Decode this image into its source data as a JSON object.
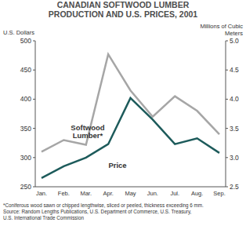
{
  "chart_data": {
    "type": "line",
    "title": "CANADIAN SOFTWOOD LUMBER PRODUCTION AND U.S. PRICES, 2001",
    "y_label": "U.S. Dollars",
    "y2_label": "Millions of Cubic Meters",
    "categories": [
      "Jan.",
      "Feb.",
      "Mar.",
      "Apr.",
      "May",
      "Jun.",
      "Jul.",
      "Aug.",
      "Sep."
    ],
    "series": [
      {
        "name": "Softwood Lumber*",
        "color": "#a6a6a6",
        "axis": "y2",
        "values": [
          3.1,
          3.3,
          3.22,
          4.77,
          4.15,
          3.7,
          4.05,
          3.8,
          3.4
        ]
      },
      {
        "name": "Price",
        "color": "#1d5b5b",
        "values": [
          265,
          285,
          300,
          323,
          402,
          365,
          323,
          333,
          308
        ]
      }
    ],
    "ylim": [
      250,
      500
    ],
    "yticks": [
      250,
      300,
      350,
      400,
      450,
      500
    ],
    "y2lim": [
      2.5,
      5.0
    ],
    "y2ticks": [
      {
        "value": 2.5,
        "label": "2.5"
      },
      {
        "value": 3.0,
        "label": "3.0"
      },
      {
        "value": 3.5,
        "label": "3.5"
      },
      {
        "value": 4.0,
        "label": "4.0"
      },
      {
        "value": 4.5,
        "label": "4.5"
      },
      {
        "value": 5.0,
        "label": "5.0"
      }
    ],
    "grid": false,
    "notes": [
      "*Coniferous wood sawn or chipped lengthwise, sliced or peeled, thickness exceeding 6 mm.",
      "Source: Random Lengths Publications, U.S. Department of Commerce, U.S. Treasury,",
      "U.S. International Trade Commission"
    ]
  }
}
